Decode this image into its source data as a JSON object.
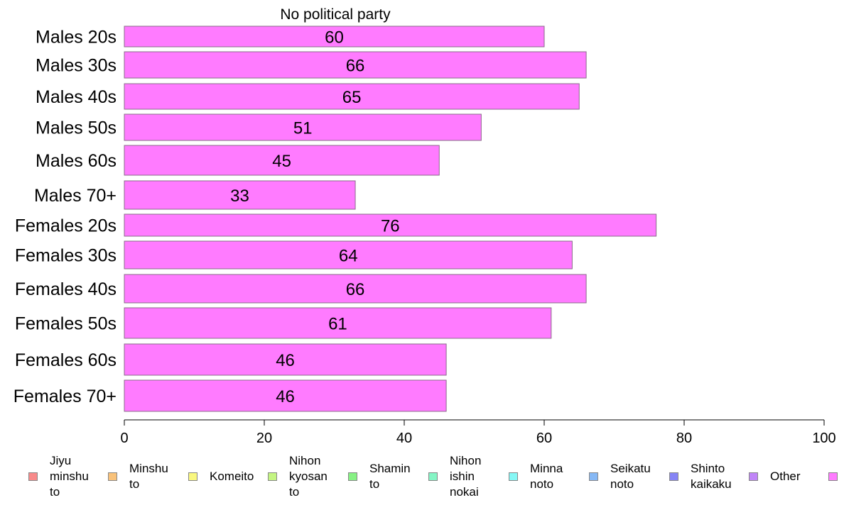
{
  "chart_data": {
    "type": "bar",
    "orientation": "horizontal",
    "title": "No political party",
    "categories": [
      "Males 20s",
      "Males 30s",
      "Males 40s",
      "Males 50s",
      "Males 60s",
      "Males 70+",
      "Females 20s",
      "Females 30s",
      "Females 40s",
      "Females 50s",
      "Females 60s",
      "Females 70+"
    ],
    "values": [
      60,
      66,
      65,
      51,
      45,
      33,
      76,
      64,
      66,
      61,
      46,
      46
    ],
    "data_labels": [
      "60",
      "66",
      "65",
      "51",
      "45",
      "33",
      "76",
      "64",
      "66",
      "61",
      "46",
      "46"
    ],
    "xlim": [
      0,
      100
    ],
    "x_ticks": [
      0,
      20,
      40,
      60,
      80,
      100
    ],
    "x_tick_labels": [
      "0",
      "20",
      "40",
      "60",
      "80",
      "100"
    ],
    "xlabel": "",
    "ylabel": "",
    "grid": false,
    "bar_color": "#ff7bff",
    "legend_position": "bottom",
    "legend": [
      {
        "label": "Jiyu\nminshu\nto",
        "color": "#f88a8a"
      },
      {
        "label": "Minshu\nto",
        "color": "#f9c27a"
      },
      {
        "label": "Komeito",
        "color": "#f9f77f"
      },
      {
        "label": "Nihon\nkyosan\nto",
        "color": "#c4f582"
      },
      {
        "label": "Shamin\nto",
        "color": "#87f184"
      },
      {
        "label": "Nihon\nishin\nnokai",
        "color": "#85f5c5"
      },
      {
        "label": "Minna\nnoto",
        "color": "#85f7f5"
      },
      {
        "label": "Seikatu\nnoto",
        "color": "#86b8f5"
      },
      {
        "label": "Shinto\nkaikaku",
        "color": "#8684f5"
      },
      {
        "label": "Other",
        "color": "#c085f7"
      },
      {
        "label": "",
        "color": "#ff7bff"
      }
    ]
  }
}
